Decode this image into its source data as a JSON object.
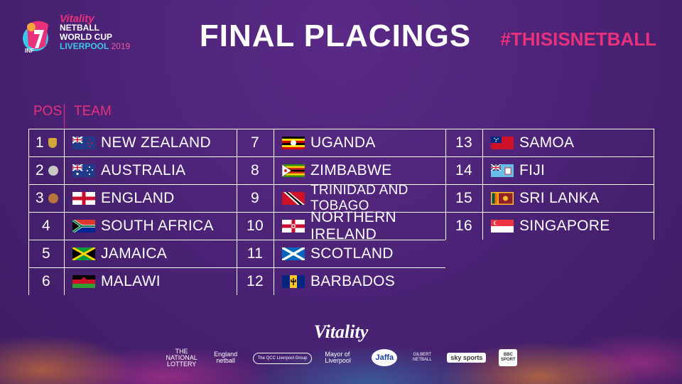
{
  "logo": {
    "vitality": "Vitality",
    "line1": "NETBALL",
    "line2": "WORLD CUP",
    "line3": "LIVERPOOL",
    "year": "2019",
    "inf": "INF"
  },
  "title": "FINAL PLACINGS",
  "hashtag": "#THISISNETBALL",
  "headers": {
    "pos": "POS",
    "team": "TEAM"
  },
  "placings": [
    {
      "pos": "1",
      "team": "NEW ZEALAND",
      "medal": "gold"
    },
    {
      "pos": "2",
      "team": "AUSTRALIA",
      "medal": "silver"
    },
    {
      "pos": "3",
      "team": "ENGLAND",
      "medal": "bronze"
    },
    {
      "pos": "4",
      "team": "SOUTH AFRICA"
    },
    {
      "pos": "5",
      "team": "JAMAICA"
    },
    {
      "pos": "6",
      "team": "MALAWI"
    },
    {
      "pos": "7",
      "team": "UGANDA"
    },
    {
      "pos": "8",
      "team": "ZIMBABWE"
    },
    {
      "pos": "9",
      "team": "TRINIDAD AND TOBAGO"
    },
    {
      "pos": "10",
      "team": "NORTHERN IRELAND"
    },
    {
      "pos": "11",
      "team": "SCOTLAND"
    },
    {
      "pos": "12",
      "team": "BARBADOS"
    },
    {
      "pos": "13",
      "team": "SAMOA"
    },
    {
      "pos": "14",
      "team": "FIJI"
    },
    {
      "pos": "15",
      "team": "SRI LANKA"
    },
    {
      "pos": "16",
      "team": "SINGAPORE"
    }
  ],
  "sponsors": {
    "main": "Vitality",
    "items": [
      "THE NATIONAL LOTTERY",
      "England netball",
      "The QCC Liverpool Group",
      "Mayor of Liverpool",
      "Jaffa",
      "GILBERT NETBALL",
      "sky sports",
      "BBC SPORT"
    ]
  },
  "colors": {
    "accent": "#e8317a",
    "background": "#4a2274"
  }
}
